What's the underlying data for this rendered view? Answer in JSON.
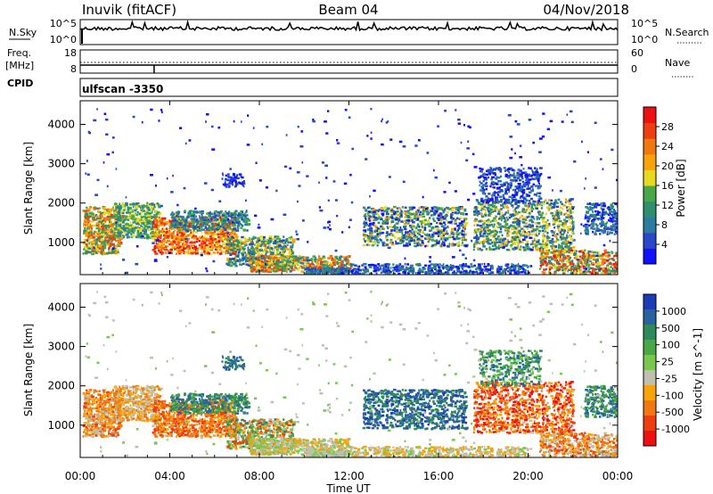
{
  "header": {
    "station": "Inuvik (fitACF)",
    "beam": "Beam 04",
    "date": "04/Nov/2018"
  },
  "noise_panel": {
    "left_label": "N.Sky",
    "right_label": "N.Search",
    "left_ticks": [
      "10^5",
      "10^0"
    ],
    "right_ticks": [
      "10^5",
      "10^0"
    ]
  },
  "freq_panel": {
    "left_label_1": "Freq.",
    "left_label_2": "[MHz]",
    "cpid_label": "CPID",
    "right_label": "Nave",
    "left_ticks": [
      "18",
      "8"
    ],
    "right_ticks": [
      "60",
      "0"
    ]
  },
  "cpid_value": "ulfscan -3350",
  "time_axis": {
    "label": "Time UT",
    "ticks": [
      "00:00",
      "04:00",
      "08:00",
      "12:00",
      "16:00",
      "20:00",
      "00:00"
    ]
  },
  "range_axis": {
    "label": "Slant Range [km]",
    "ticks": [
      "1000",
      "2000",
      "3000",
      "4000"
    ]
  },
  "chart_data": [
    {
      "type": "heatmap",
      "title": "",
      "xlabel": "",
      "ylabel": "Slant Range [km]",
      "xlim_hours": [
        0,
        24
      ],
      "ylim": [
        180,
        4600
      ],
      "colorbar": {
        "label": "Power [dB]",
        "ticks": [
          "4",
          "8",
          "12",
          "16",
          "20",
          "24",
          "28"
        ],
        "colors": [
          "#1010ff",
          "#2848c8",
          "#2e7ba0",
          "#2f8f6c",
          "#48a848",
          "#e8d820",
          "#f6a40a",
          "#f07812",
          "#ee3e10",
          "#ee1010"
        ]
      }
    },
    {
      "type": "heatmap",
      "title": "",
      "xlabel": "Time UT",
      "ylabel": "Slant Range [km]",
      "xlim_hours": [
        0,
        24
      ],
      "ylim": [
        180,
        4600
      ],
      "colorbar": {
        "label": "Velocity [m s^-1]",
        "ticks": [
          "1000",
          "500",
          "100",
          "25",
          "-25",
          "-100",
          "-500",
          "-1000"
        ],
        "colors": [
          "#1a3cb4",
          "#2a62a0",
          "#2e8a5a",
          "#48a848",
          "#78c850",
          "#c0c0b0",
          "#f6a40a",
          "#f07812",
          "#ee3e10",
          "#ee1010"
        ]
      }
    }
  ]
}
